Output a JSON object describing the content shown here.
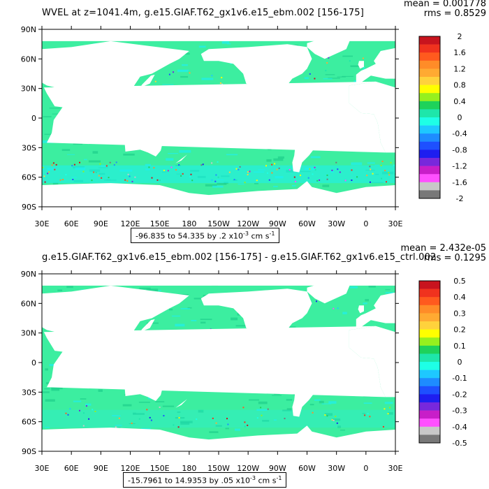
{
  "panels": [
    {
      "title": "WVEL at z=1041.4m, g.e15.GIAF.T62_gx1v6.e15_ebm.002 [156-175]",
      "mean": "mean = 0.001778",
      "rms": "rms = 0.8529",
      "range_text": "-96.835 to 54.335 by .2 x10",
      "range_exp": "-3",
      "range_unit": " cm s",
      "range_unit_exp": "-1",
      "colorbar_labels": [
        "2",
        "1.6",
        "1.2",
        "0.8",
        "0.4",
        "0",
        "-0.4",
        "-0.8",
        "-1.2",
        "-1.6",
        "-2"
      ]
    },
    {
      "title": "g.e15.GIAF.T62_gx1v6.e15_ebm.002 [156-175] - g.e15.GIAF.T62_gx1v6.e15_ctrl.002",
      "mean": "mean = 2.432e-05",
      "rms": "rms = 0.1295",
      "range_text": "-15.7961 to 14.9353 by .05 x10",
      "range_exp": "-3",
      "range_unit": " cm s",
      "range_unit_exp": "-1",
      "colorbar_labels": [
        "0.5",
        "0.4",
        "0.3",
        "0.2",
        "0.1",
        "0",
        "-0.1",
        "-0.2",
        "-0.3",
        "-0.4",
        "-0.5"
      ]
    }
  ],
  "lat_labels": [
    "90N",
    "60N",
    "30N",
    "0",
    "30S",
    "60S",
    "90S"
  ],
  "lon_labels": [
    "30E",
    "60E",
    "90E",
    "120E",
    "150E",
    "180",
    "150W",
    "120W",
    "90W",
    "60W",
    "30W",
    "0",
    "30E"
  ],
  "colorbar_colors": [
    "#c8141e",
    "#f0321e",
    "#ff5a1e",
    "#ff8c28",
    "#ffaa32",
    "#ffd23c",
    "#ffff00",
    "#96f01e",
    "#1ed25a",
    "#1ee6aa",
    "#1effe6",
    "#1ec8ff",
    "#1e8cff",
    "#1e50ff",
    "#1e1ef0",
    "#7828dc",
    "#c81ec8",
    "#ff50ff",
    "#c8c8c8",
    "#787878"
  ],
  "ocean_color": "#3ceea0",
  "ocean_shade_color": "#1ecf8a",
  "ocean_cyan_color": "#1ef0f0",
  "land_color": "#ffffff",
  "lon_start_deg": 30,
  "lat_max_deg": 90
}
